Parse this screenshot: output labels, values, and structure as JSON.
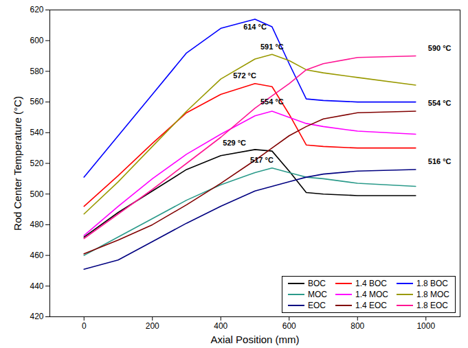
{
  "chart_data": {
    "type": "line",
    "x_label": "Axial Position (mm)",
    "y_label": "Rod Center Temperature (°C)",
    "x": [
      0,
      100,
      200,
      300,
      400,
      500,
      550,
      600,
      650,
      700,
      800,
      970
    ],
    "series": [
      {
        "name": "BOC",
        "color": "#000000",
        "values": [
          472,
          488,
          502,
          516,
          525,
          529,
          528,
          515,
          501,
          500,
          499,
          499
        ]
      },
      {
        "name": "1.4 BOC",
        "color": "#ff0000",
        "values": [
          492,
          512,
          533,
          553,
          565,
          572,
          570,
          552,
          532,
          531,
          530,
          530
        ]
      },
      {
        "name": "1.8 BOC",
        "color": "#0000ff",
        "values": [
          511,
          538,
          565,
          592,
          608,
          614,
          609,
          585,
          562,
          561,
          560,
          560
        ]
      },
      {
        "name": "MOC",
        "color": "#2a9a8a",
        "values": [
          460,
          472,
          484,
          496,
          506,
          514,
          517,
          514,
          511,
          510,
          507,
          505
        ]
      },
      {
        "name": "1.4 MOC",
        "color": "#ff00ff",
        "values": [
          473,
          492,
          510,
          526,
          539,
          551,
          554,
          550,
          546,
          544,
          541,
          539
        ]
      },
      {
        "name": "1.8 MOC",
        "color": "#999900",
        "values": [
          487,
          508,
          531,
          554,
          575,
          588,
          591,
          587,
          581,
          579,
          576,
          571
        ]
      },
      {
        "name": "EOC",
        "color": "#000080",
        "values": [
          451,
          457,
          469,
          481,
          492,
          502,
          505,
          508,
          511,
          513,
          515,
          516
        ]
      },
      {
        "name": "1.4 EOC",
        "color": "#800000",
        "values": [
          461,
          470,
          480,
          493,
          507,
          522,
          530,
          538,
          544,
          549,
          553,
          554
        ]
      },
      {
        "name": "1.8 EOC",
        "color": "#ff1493",
        "values": [
          471,
          487,
          503,
          520,
          537,
          556,
          564,
          572,
          581,
          585,
          589,
          590
        ]
      }
    ],
    "annotations": [
      {
        "text": "614 °C",
        "x": 500,
        "y": 609
      },
      {
        "text": "591 °C",
        "x": 550,
        "y": 596
      },
      {
        "text": "572 °C",
        "x": 470,
        "y": 577
      },
      {
        "text": "554 °C",
        "x": 550,
        "y": 560
      },
      {
        "text": "529 °C",
        "x": 440,
        "y": 533
      },
      {
        "text": "517 °C",
        "x": 520,
        "y": 522
      },
      {
        "text": "590 °C",
        "x": 1040,
        "y": 595
      },
      {
        "text": "554 °C",
        "x": 1040,
        "y": 559
      },
      {
        "text": "516 °C",
        "x": 1040,
        "y": 521
      }
    ],
    "xlim": [
      -100,
      1100
    ],
    "xticks": [
      0,
      200,
      400,
      600,
      800,
      1000
    ],
    "ylim": [
      420,
      620
    ],
    "yticks": [
      420,
      440,
      460,
      480,
      500,
      520,
      540,
      560,
      580,
      600,
      620
    ],
    "grid": false,
    "legend": "lower right"
  }
}
